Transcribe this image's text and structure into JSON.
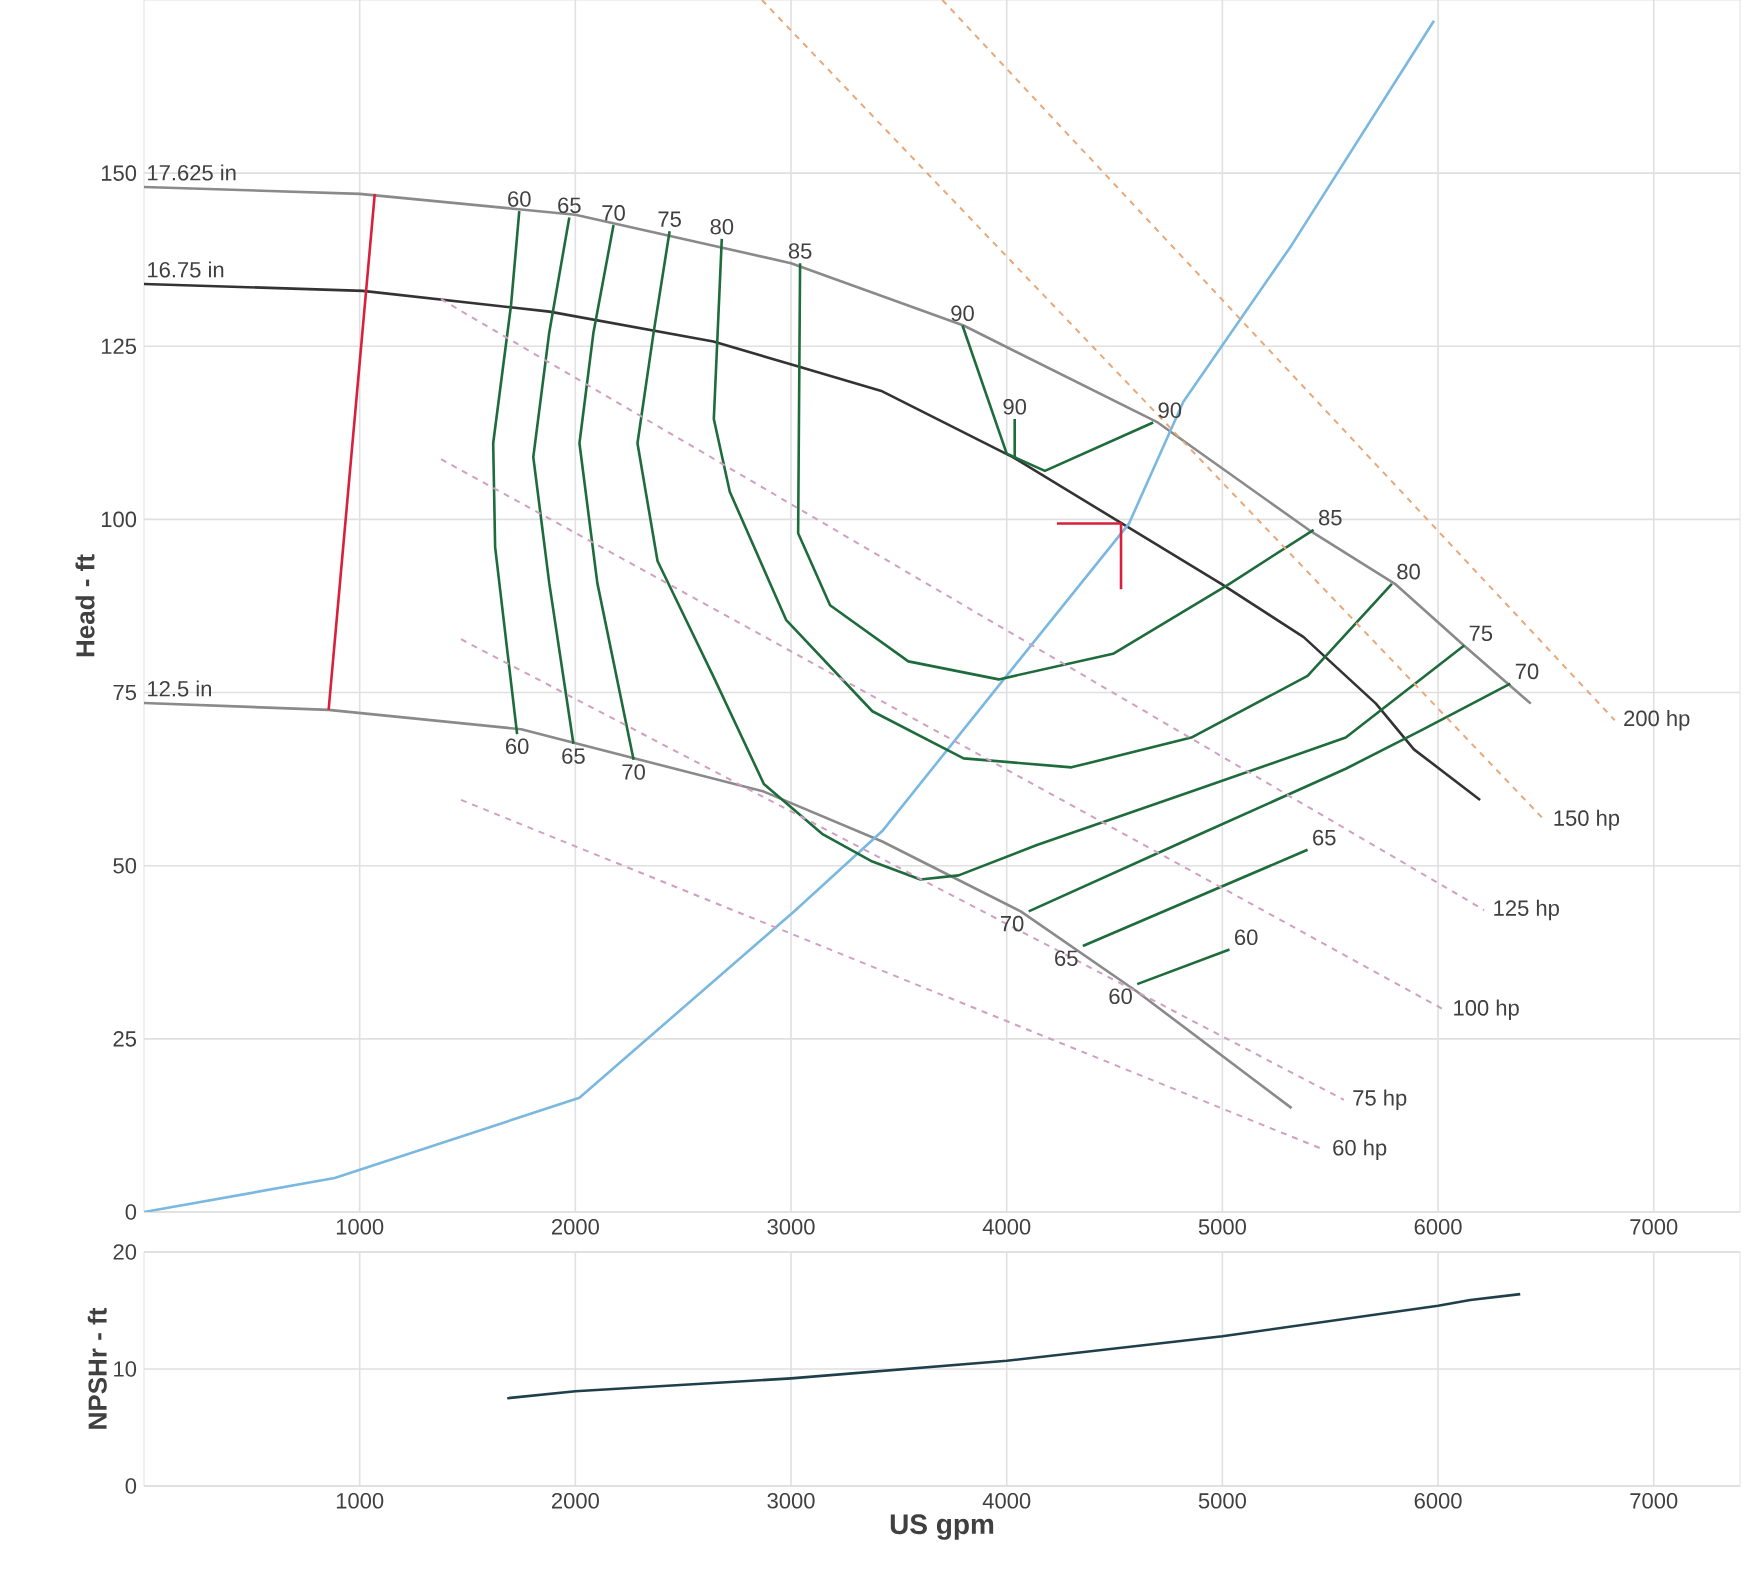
{
  "chart_data": [
    {
      "type": "line",
      "ylabel": "Head - ft",
      "xlim": [
        0,
        7400
      ],
      "ylim": [
        0,
        175
      ],
      "xticks": [
        1000,
        2000,
        3000,
        4000,
        5000,
        6000,
        7000
      ],
      "yticks": [
        0,
        25,
        50,
        75,
        100,
        125,
        150
      ],
      "grid": true,
      "line_style": "solid",
      "series": [
        {
          "name": "17.625 in",
          "color": "#8a8a8a",
          "x": [
            0,
            1000,
            2000,
            3000,
            3800,
            4700,
            5400,
            5800,
            6120,
            6430
          ],
          "values": [
            148,
            147,
            144,
            137,
            128,
            114,
            98.5,
            90.7,
            81.8,
            73.4
          ]
        },
        {
          "name": "16.75 in",
          "color": "#333333",
          "x": [
            0,
            1015,
            1880,
            2640,
            3042,
            3423,
            4028,
            4530,
            4995,
            5377,
            5712,
            5888,
            6195
          ],
          "values": [
            134,
            133,
            130,
            125.7,
            122,
            118.5,
            109,
            99.5,
            90.7,
            83,
            73.4,
            66.8,
            59.5
          ]
        },
        {
          "name": "12.5 in",
          "color": "#8a8a8a",
          "x": [
            0,
            856,
            1749,
            2874,
            3423,
            4065,
            4605,
            5321
          ],
          "values": [
            73.5,
            72.5,
            69.7,
            60.7,
            53.5,
            43.4,
            31.8,
            15
          ]
        },
        {
          "color": "#7ab8e0",
          "x": [
            0,
            884,
            2019,
            3014,
            3423,
            3963,
            4567,
            4819,
            5321,
            5981
          ],
          "values": [
            0,
            4.9,
            16.5,
            43.4,
            55,
            76,
            99.4,
            117,
            139.6,
            172
          ]
        },
        {
          "color": "#d8203c",
          "x": [
            1070,
            856
          ],
          "values": [
            147,
            72.5
          ]
        },
        {
          "color": "#d8203c",
          "x": [
            4233,
            4530,
            4530
          ],
          "values": [
            99.4,
            99.4,
            89.9
          ]
        },
        {
          "color": "#1e6b3c",
          "x": [
            1740,
            1702,
            1619,
            1628,
            1730
          ],
          "values": [
            144.5,
            131,
            111,
            96,
            69
          ]
        },
        {
          "color": "#1e6b3c",
          "x": [
            1972,
            1879,
            1805,
            1879,
            1991
          ],
          "values": [
            143.6,
            127,
            109,
            90.8,
            67.6
          ]
        },
        {
          "color": "#1e6b3c",
          "x": [
            2177,
            2084,
            2019,
            2102,
            2270
          ],
          "values": [
            142.5,
            127,
            111,
            90.8,
            65.3
          ]
        },
        {
          "color": "#1e6b3c",
          "x": [
            2437,
            2363,
            2288,
            2381,
            2642,
            2874,
            3144,
            3377,
            3600,
            3777,
            4140,
            4856,
            5572,
            6121
          ],
          "values": [
            141.6,
            127,
            111,
            94,
            77.2,
            61.8,
            54.6,
            50.6,
            48,
            48.6,
            53,
            60.7,
            68.5,
            81.8
          ]
        },
        {
          "color": "#1e6b3c",
          "x": [
            2679,
            2642,
            2716,
            2977,
            3377,
            3800,
            4300,
            4856,
            5395,
            5786
          ],
          "values": [
            140.5,
            114.5,
            104,
            85.5,
            72.3,
            65.5,
            64.2,
            68.5,
            77.4,
            90.7
          ]
        },
        {
          "color": "#1e6b3c",
          "x": [
            3042,
            3033,
            3181,
            3544,
            3963,
            4493,
            5033,
            5423
          ],
          "values": [
            137,
            98,
            87.6,
            79.5,
            76.9,
            80.6,
            90.7,
            98.5
          ]
        },
        {
          "color": "#1e6b3c",
          "x": [
            3795,
            4000
          ],
          "values": [
            128,
            109.5
          ]
        },
        {
          "color": "#1e6b3c",
          "x": [
            4037,
            4037
          ],
          "values": [
            114.5,
            109
          ]
        },
        {
          "color": "#1e6b3c",
          "x": [
            4000,
            4177,
            4679
          ],
          "values": [
            109.5,
            107,
            114
          ]
        },
        {
          "color": "#1e6b3c",
          "x": [
            4102,
            4856,
            5572,
            5926,
            6335
          ],
          "values": [
            43.4,
            54,
            64,
            69.6,
            76.3
          ]
        },
        {
          "color": "#1e6b3c",
          "x": [
            4353,
            5395
          ],
          "values": [
            38.4,
            52.3
          ]
        },
        {
          "color": "#1e6b3c",
          "x": [
            4605,
            5033
          ],
          "values": [
            32.9,
            37.9
          ]
        },
        {
          "name": "200 hp",
          "color": "#e8a878",
          "line_style": "dashed",
          "x": [
            3702,
            6819
          ],
          "values": [
            175,
            71
          ]
        },
        {
          "name": "150 hp",
          "color": "#e8a878",
          "line_style": "dashed",
          "x": [
            2865,
            6493
          ],
          "values": [
            175,
            56.6
          ]
        },
        {
          "name": "125 hp",
          "color": "#d0a0c0",
          "line_style": "dashed",
          "x": [
            1377,
            6214
          ],
          "values": [
            131.8,
            43.6
          ]
        },
        {
          "name": "100 hp",
          "color": "#d0a0c0",
          "line_style": "dashed",
          "x": [
            1377,
            6028
          ],
          "values": [
            108.7,
            29.2
          ]
        },
        {
          "name": "75 hp",
          "color": "#d0a0c0",
          "line_style": "dashed",
          "x": [
            1470,
            5563
          ],
          "values": [
            82.7,
            16.2
          ]
        },
        {
          "name": "60 hp",
          "color": "#d0a0c0",
          "line_style": "dashed",
          "x": [
            1470,
            5470
          ],
          "values": [
            59.5,
            9
          ]
        }
      ],
      "annotations": [
        {
          "text": "60",
          "x": 1740,
          "y": 144.5
        },
        {
          "text": "65",
          "x": 1972,
          "y": 143.6
        },
        {
          "text": "70",
          "x": 2177,
          "y": 142.5
        },
        {
          "text": "75",
          "x": 2437,
          "y": 141.6
        },
        {
          "text": "80",
          "x": 2679,
          "y": 140.5
        },
        {
          "text": "85",
          "x": 3042,
          "y": 137
        },
        {
          "text": "90",
          "x": 3795,
          "y": 128
        },
        {
          "text": "90",
          "x": 4037,
          "y": 114.5
        },
        {
          "text": "90",
          "x": 4679,
          "y": 114
        },
        {
          "text": "85",
          "x": 5423,
          "y": 98.5
        },
        {
          "text": "80",
          "x": 5786,
          "y": 90.7
        },
        {
          "text": "75",
          "x": 6121,
          "y": 81.8
        },
        {
          "text": "70",
          "x": 6335,
          "y": 76.3
        },
        {
          "text": "60",
          "x": 1730,
          "y": 69
        },
        {
          "text": "65",
          "x": 1991,
          "y": 67.6
        },
        {
          "text": "70",
          "x": 2270,
          "y": 65.3
        },
        {
          "text": "65",
          "x": 5395,
          "y": 52.3
        },
        {
          "text": "60",
          "x": 5033,
          "y": 37.9
        },
        {
          "text": "70",
          "x": 4102,
          "y": 43.4
        },
        {
          "text": "65",
          "x": 4353,
          "y": 38.4
        },
        {
          "text": "60",
          "x": 4605,
          "y": 32.9
        }
      ]
    },
    {
      "type": "line",
      "xlabel": "US gpm",
      "ylabel": "NPSHr - ft",
      "xlim": [
        0,
        7400
      ],
      "ylim": [
        0,
        20
      ],
      "xticks": [
        1000,
        2000,
        3000,
        4000,
        5000,
        6000,
        7000
      ],
      "yticks": [
        0,
        10,
        20
      ],
      "grid": true,
      "line_style": "solid",
      "series": [
        {
          "color": "#1f3f4a",
          "x": [
            1684,
            2000,
            3000,
            4000,
            5000,
            6000,
            6149,
            6381
          ],
          "values": [
            7.5,
            8.1,
            9.2,
            10.7,
            12.8,
            15.4,
            15.9,
            16.4
          ]
        }
      ]
    }
  ]
}
